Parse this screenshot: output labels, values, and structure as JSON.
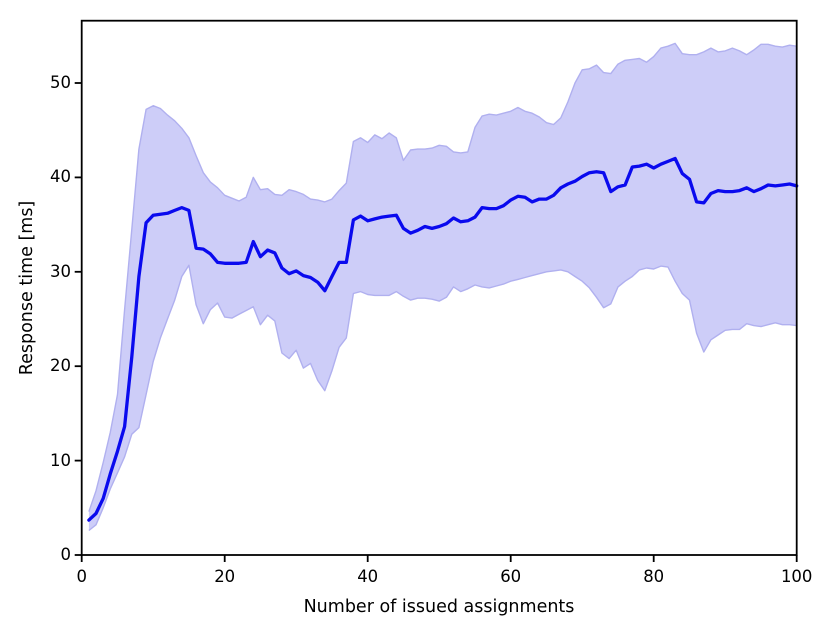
{
  "figure": {
    "background": "#ffffff"
  },
  "chart_data": {
    "type": "line",
    "title": "",
    "xlabel": "Number of issued assignments",
    "ylabel": "Response time [ms]",
    "xlim": [
      0,
      100
    ],
    "ylim": [
      0,
      56.6
    ],
    "xticks": [
      0,
      20,
      40,
      60,
      80,
      100
    ],
    "yticks": [
      0,
      10,
      20,
      30,
      40,
      50
    ],
    "grid": false,
    "legend_position": "none",
    "line_color": "#0a0aee",
    "band_fill_color": "#cdcdf8",
    "band_edge_color": "#b0b0ef",
    "frame_color": "#000000",
    "x": [
      1,
      2,
      3,
      4,
      5,
      6,
      7,
      8,
      9,
      10,
      11,
      12,
      13,
      14,
      15,
      16,
      17,
      18,
      19,
      20,
      21,
      22,
      23,
      24,
      25,
      26,
      27,
      28,
      29,
      30,
      31,
      32,
      33,
      34,
      35,
      36,
      37,
      38,
      39,
      40,
      41,
      42,
      43,
      44,
      45,
      46,
      47,
      48,
      49,
      50,
      51,
      52,
      53,
      54,
      55,
      56,
      57,
      58,
      59,
      60,
      61,
      62,
      63,
      64,
      65,
      66,
      67,
      68,
      69,
      70,
      71,
      72,
      73,
      74,
      75,
      76,
      77,
      78,
      79,
      80,
      81,
      82,
      83,
      84,
      85,
      86,
      87,
      88,
      89,
      90,
      91,
      92,
      93,
      94,
      95,
      96,
      97,
      98,
      99,
      100
    ],
    "series": [
      {
        "name": "mean",
        "values": [
          3.7,
          4.4,
          6.0,
          8.6,
          11.0,
          13.6,
          21.0,
          29.5,
          35.2,
          36.0,
          36.1,
          36.2,
          36.5,
          36.8,
          36.5,
          32.5,
          32.4,
          31.9,
          31.0,
          30.9,
          30.9,
          30.9,
          31.0,
          33.2,
          31.6,
          32.3,
          32.0,
          30.4,
          29.8,
          30.1,
          29.6,
          29.4,
          28.9,
          28.0,
          29.5,
          31.0,
          31.0,
          35.5,
          35.9,
          35.4,
          35.6,
          35.8,
          35.9,
          36.0,
          34.6,
          34.1,
          34.4,
          34.8,
          34.6,
          34.8,
          35.1,
          35.7,
          35.3,
          35.4,
          35.8,
          36.8,
          36.7,
          36.7,
          37.0,
          37.6,
          38.0,
          37.9,
          37.4,
          37.7,
          37.7,
          38.1,
          38.9,
          39.3,
          39.6,
          40.1,
          40.5,
          40.6,
          40.5,
          38.5,
          39.0,
          39.2,
          41.1,
          41.2,
          41.4,
          41.0,
          41.4,
          41.7,
          42.0,
          40.4,
          39.8,
          37.4,
          37.3,
          38.3,
          38.6,
          38.5,
          38.5,
          38.6,
          38.9,
          38.5,
          38.8,
          39.2,
          39.1,
          39.2,
          39.3,
          39.1
        ]
      },
      {
        "name": "upper_bound",
        "values": [
          4.6,
          6.8,
          9.8,
          13.0,
          17.0,
          26.0,
          34.5,
          43.0,
          47.2,
          47.6,
          47.3,
          46.6,
          46.0,
          45.2,
          44.2,
          42.3,
          40.5,
          39.5,
          38.9,
          38.1,
          37.8,
          37.5,
          37.9,
          40.0,
          38.7,
          38.8,
          38.2,
          38.1,
          38.7,
          38.5,
          38.2,
          37.7,
          37.6,
          37.4,
          37.7,
          38.6,
          39.4,
          43.8,
          44.2,
          43.7,
          44.5,
          44.1,
          44.7,
          44.2,
          41.8,
          42.9,
          43.0,
          43.0,
          43.1,
          43.4,
          43.3,
          42.7,
          42.6,
          42.7,
          45.3,
          46.5,
          46.7,
          46.6,
          46.8,
          47.0,
          47.4,
          47.0,
          46.8,
          46.4,
          45.8,
          45.6,
          46.3,
          48.0,
          50.0,
          51.4,
          51.5,
          51.9,
          51.1,
          51.0,
          52.0,
          52.4,
          52.5,
          52.6,
          52.2,
          52.8,
          53.7,
          53.9,
          54.2,
          53.1,
          53.0,
          53.0,
          53.3,
          53.7,
          53.3,
          53.4,
          53.7,
          53.4,
          53.0,
          53.5,
          54.1,
          54.1,
          53.9,
          53.8,
          54.0,
          53.9
        ]
      },
      {
        "name": "lower_bound",
        "values": [
          2.6,
          3.2,
          5.0,
          7.0,
          8.7,
          10.4,
          12.8,
          13.5,
          17.0,
          20.5,
          23.0,
          25.0,
          27.0,
          29.5,
          30.7,
          26.5,
          24.5,
          26.0,
          26.7,
          25.2,
          25.1,
          25.5,
          25.9,
          26.3,
          24.4,
          25.4,
          24.8,
          21.4,
          20.8,
          21.7,
          19.8,
          20.3,
          18.5,
          17.4,
          19.5,
          22.0,
          23.0,
          27.7,
          27.9,
          27.6,
          27.5,
          27.5,
          27.5,
          27.9,
          27.4,
          27.0,
          27.2,
          27.2,
          27.1,
          26.9,
          27.3,
          28.4,
          27.9,
          28.2,
          28.6,
          28.4,
          28.3,
          28.5,
          28.7,
          29.0,
          29.2,
          29.4,
          29.6,
          29.8,
          30.0,
          30.1,
          30.2,
          30.0,
          29.5,
          29.0,
          28.3,
          27.3,
          26.2,
          26.6,
          28.4,
          29.0,
          29.5,
          30.2,
          30.4,
          30.3,
          30.6,
          30.5,
          29.0,
          27.7,
          27.0,
          23.5,
          21.5,
          22.8,
          23.3,
          23.8,
          23.9,
          23.9,
          24.5,
          24.3,
          24.2,
          24.4,
          24.6,
          24.4,
          24.4,
          24.3
        ]
      }
    ]
  }
}
